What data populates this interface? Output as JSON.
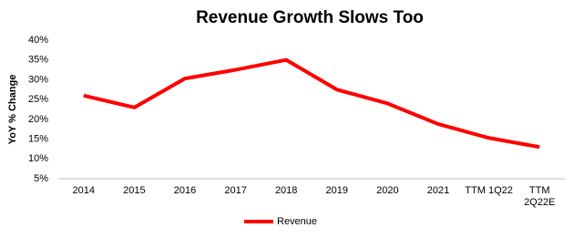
{
  "chart_data": {
    "type": "line",
    "title": "Revenue Growth Slows Too",
    "y_label": "YoY % Change",
    "categories": [
      "2014",
      "2015",
      "2016",
      "2017",
      "2018",
      "2019",
      "2020",
      "2021",
      "TTM 1Q22",
      "TTM\n2Q22E"
    ],
    "series": [
      {
        "name": "Revenue",
        "color": "#ff0000",
        "values": [
          26,
          23,
          30.3,
          32.5,
          35,
          27.5,
          24,
          18.8,
          15.3,
          13
        ]
      }
    ],
    "ylim": [
      5,
      40
    ],
    "yticks": [
      {
        "value": 5,
        "label": "5%"
      },
      {
        "value": 10,
        "label": "10%"
      },
      {
        "value": 15,
        "label": "15%"
      },
      {
        "value": 20,
        "label": "20%"
      },
      {
        "value": 25,
        "label": "25%"
      },
      {
        "value": 30,
        "label": "30%"
      },
      {
        "value": 35,
        "label": "35%"
      },
      {
        "value": 40,
        "label": "40%"
      }
    ],
    "grid": false,
    "legend": "bottom"
  }
}
